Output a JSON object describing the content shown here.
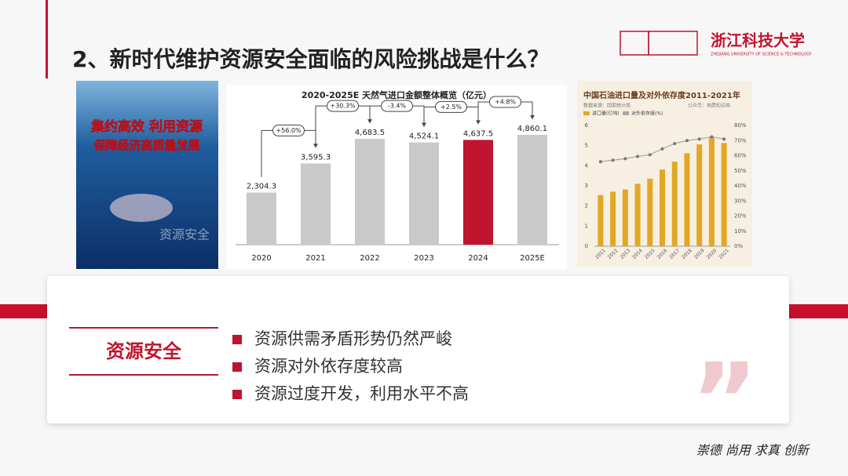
{
  "header": {
    "title": "2、新时代维护资源安全面临的风险挑战是什么？",
    "logo": "浙江科技大学",
    "logo_subtitle": "ZHEJIANG UNIVERSITY OF SCIENCE & TECHNOLOGY"
  },
  "poster": {
    "lines": [
      "集约高效 利用资源",
      "保障经济高质量发展"
    ],
    "watermark": "资源安全"
  },
  "chart_data": [
    {
      "type": "bar",
      "title": "2020-2025E 天然气进口金额整体概览（亿元）",
      "categories": [
        "2020",
        "2021",
        "2022",
        "2023",
        "2024",
        "2025E"
      ],
      "values": [
        2304.3,
        3595.3,
        4683.5,
        4524.1,
        4637.5,
        4860.1
      ],
      "value_labels": [
        "2,304.3",
        "3,595.3",
        "4,683.5",
        "4,524.1",
        "4,637.5",
        "4,860.1"
      ],
      "colors": [
        "#c9c9c9",
        "#c9c9c9",
        "#c9c9c9",
        "#c9c9c9",
        "#c0142e",
        "#c9c9c9"
      ],
      "growth_labels": [
        "+56.0%",
        "+30.3%",
        "-3.4%",
        "+2.5%",
        "+4.8%"
      ]
    },
    {
      "type": "combo",
      "title": "中国石油进口量及对外依存度2011-2021年",
      "source": "数据来源：国家统计局",
      "credit": "公众号：地质知识局",
      "categories": [
        "2011",
        "2012",
        "2013",
        "2014",
        "2015",
        "2016",
        "2017",
        "2018",
        "2019",
        "2020",
        "2021"
      ],
      "series": [
        {
          "name": "进口量(亿吨)",
          "color": "#e2a824",
          "values": [
            2.54,
            2.71,
            2.82,
            3.1,
            3.36,
            3.81,
            4.2,
            4.62,
            5.06,
            5.42,
            5.13
          ]
        },
        {
          "name": "对外依存度(%)",
          "color": "#a8a8a8",
          "axis": "y2",
          "values": [
            56,
            57,
            58,
            59.5,
            60.6,
            64.5,
            68,
            70,
            71,
            72.5,
            71
          ]
        }
      ],
      "ylim": [
        0,
        6
      ],
      "yticks": [
        0,
        1,
        2,
        3,
        4,
        5,
        6
      ],
      "y2lim": [
        0,
        80
      ],
      "y2ticks": [
        {
          "value": 0,
          "label": "0%"
        },
        {
          "value": 10,
          "label": "10%"
        },
        {
          "value": 20,
          "label": "20%"
        },
        {
          "value": 30,
          "label": "30%"
        },
        {
          "value": 40,
          "label": "40%"
        },
        {
          "value": 50,
          "label": "50%"
        },
        {
          "value": 60,
          "label": "60%"
        },
        {
          "value": 70,
          "label": "70%"
        },
        {
          "value": 80,
          "label": "80%"
        }
      ]
    }
  ],
  "card": {
    "label": "资源安全",
    "bullets": [
      "资源供需矛盾形势仍然严峻",
      "资源对外依存度较高",
      "资源过度开发，利用水平不高"
    ]
  },
  "footer": {
    "motto": "崇德 尚用 求真 创新"
  }
}
